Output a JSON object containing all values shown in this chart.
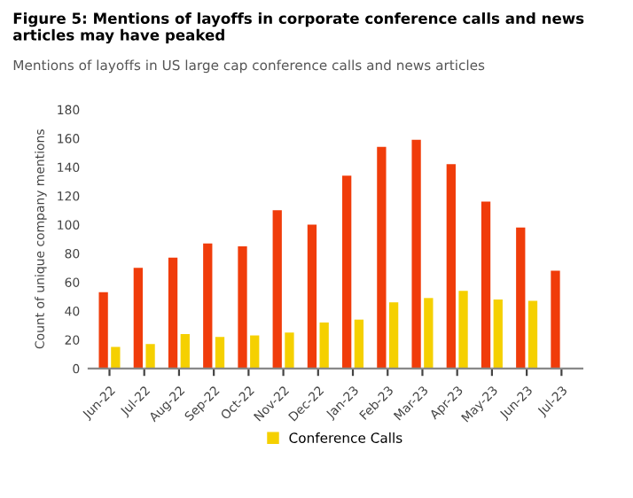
{
  "chart_data": {
    "type": "bar",
    "title": "Figure 5: Mentions of layoffs in corporate conference calls and news articles may have peaked",
    "subtitle": "Mentions of layoffs in US large cap conference calls and news articles",
    "ylabel": "Count of unique company mentions",
    "categories": [
      "Jun-22",
      "Jul-22",
      "Aug-22",
      "Sep-22",
      "Oct-22",
      "Nov-22",
      "Dec-22",
      "Jan-23",
      "Feb-23",
      "Mar-23",
      "Apr-23",
      "May-23",
      "Jun-23",
      "Jul-23"
    ],
    "series": [
      {
        "color": "#f03c0a",
        "values": [
          53,
          70,
          77,
          87,
          85,
          110,
          100,
          134,
          154,
          159,
          142,
          116,
          98,
          68
        ]
      },
      {
        "name": "Conference Calls",
        "color": "#f5d000",
        "values": [
          15,
          17,
          24,
          22,
          23,
          25,
          32,
          34,
          46,
          49,
          54,
          48,
          47,
          null
        ]
      }
    ],
    "ylim": [
      0,
      180
    ],
    "yticks": [
      0,
      20,
      40,
      60,
      80,
      100,
      120,
      140,
      160,
      180
    ],
    "grid": false,
    "legend": "bottom"
  }
}
